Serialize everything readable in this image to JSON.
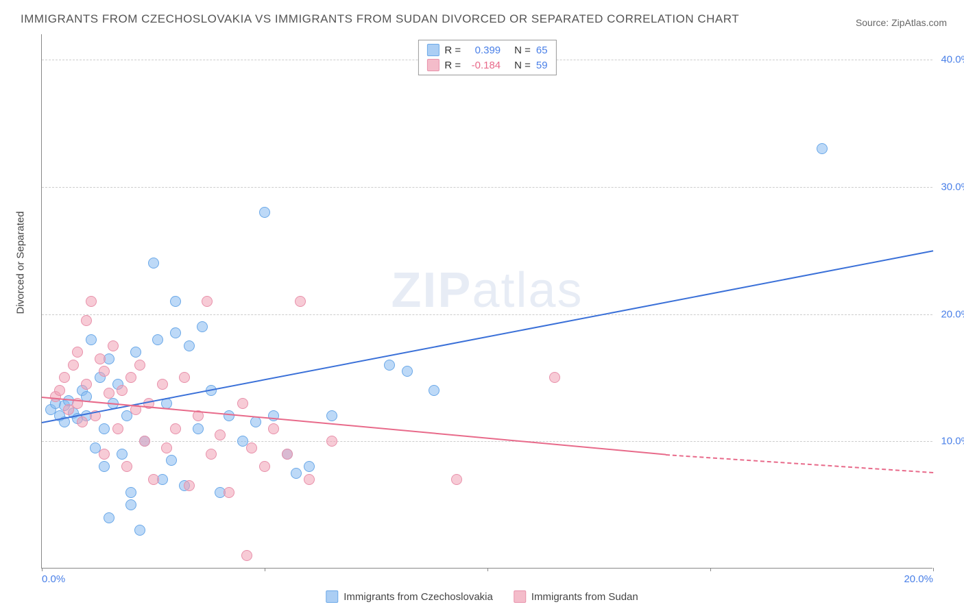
{
  "title": "IMMIGRANTS FROM CZECHOSLOVAKIA VS IMMIGRANTS FROM SUDAN DIVORCED OR SEPARATED CORRELATION CHART",
  "source": "Source: ZipAtlas.com",
  "watermark_a": "ZIP",
  "watermark_b": "atlas",
  "y_axis_label": "Divorced or Separated",
  "chart": {
    "type": "scatter",
    "xlim": [
      0,
      20
    ],
    "ylim": [
      0,
      42
    ],
    "x_ticks": [
      0,
      5,
      10,
      15,
      20
    ],
    "y_ticks": [
      10,
      20,
      30,
      40
    ],
    "x_tick_labels": [
      "0.0%",
      "",
      "",
      "",
      "20.0%"
    ],
    "y_tick_labels": [
      "10.0%",
      "20.0%",
      "30.0%",
      "40.0%"
    ],
    "grid_color": "#cccccc",
    "background_color": "#ffffff",
    "series": [
      {
        "name": "Immigrants from Czechoslovakia",
        "color": "#87b9f0",
        "border": "#6aa8e8",
        "line_color": "#3a70d8",
        "r": "0.399",
        "n": "65",
        "trend": {
          "x1": 0,
          "y1": 11.5,
          "x2": 20,
          "y2": 25.0
        },
        "points": [
          [
            0.2,
            12.5
          ],
          [
            0.3,
            13
          ],
          [
            0.4,
            12
          ],
          [
            0.5,
            12.8
          ],
          [
            0.5,
            11.5
          ],
          [
            0.6,
            13.2
          ],
          [
            0.7,
            12.2
          ],
          [
            0.8,
            11.8
          ],
          [
            0.9,
            14
          ],
          [
            1.0,
            13.5
          ],
          [
            1.0,
            12
          ],
          [
            1.1,
            18
          ],
          [
            1.2,
            9.5
          ],
          [
            1.3,
            15
          ],
          [
            1.4,
            11
          ],
          [
            1.4,
            8
          ],
          [
            1.5,
            16.5
          ],
          [
            1.5,
            4
          ],
          [
            1.6,
            13
          ],
          [
            1.7,
            14.5
          ],
          [
            1.8,
            9
          ],
          [
            1.9,
            12
          ],
          [
            2.0,
            6
          ],
          [
            2.0,
            5
          ],
          [
            2.1,
            17
          ],
          [
            2.2,
            3
          ],
          [
            2.3,
            10
          ],
          [
            2.5,
            24
          ],
          [
            2.6,
            18
          ],
          [
            2.7,
            7
          ],
          [
            2.8,
            13
          ],
          [
            2.9,
            8.5
          ],
          [
            3.0,
            18.5
          ],
          [
            3.0,
            21
          ],
          [
            3.2,
            6.5
          ],
          [
            3.3,
            17.5
          ],
          [
            3.5,
            11
          ],
          [
            3.6,
            19
          ],
          [
            3.8,
            14
          ],
          [
            4.0,
            6
          ],
          [
            4.2,
            12
          ],
          [
            4.5,
            10
          ],
          [
            4.8,
            11.5
          ],
          [
            5.0,
            28
          ],
          [
            5.2,
            12
          ],
          [
            5.5,
            9
          ],
          [
            5.7,
            7.5
          ],
          [
            6.0,
            8
          ],
          [
            6.5,
            12
          ],
          [
            7.8,
            16
          ],
          [
            8.2,
            15.5
          ],
          [
            8.8,
            14
          ],
          [
            17.5,
            33
          ]
        ]
      },
      {
        "name": "Immigrants from Sudan",
        "color": "#f0a0b4",
        "border": "#e890aa",
        "line_color": "#e86a8a",
        "r": "-0.184",
        "n": "59",
        "trend": {
          "x1": 0,
          "y1": 13.5,
          "x2": 14,
          "y2": 9.0,
          "dash_x2": 20,
          "dash_y2": 7.6
        },
        "points": [
          [
            0.3,
            13.5
          ],
          [
            0.4,
            14
          ],
          [
            0.5,
            15
          ],
          [
            0.6,
            12.5
          ],
          [
            0.7,
            16
          ],
          [
            0.8,
            13
          ],
          [
            0.8,
            17
          ],
          [
            0.9,
            11.5
          ],
          [
            1.0,
            19.5
          ],
          [
            1.0,
            14.5
          ],
          [
            1.1,
            21
          ],
          [
            1.2,
            12
          ],
          [
            1.3,
            16.5
          ],
          [
            1.4,
            15.5
          ],
          [
            1.4,
            9
          ],
          [
            1.5,
            13.8
          ],
          [
            1.6,
            17.5
          ],
          [
            1.7,
            11
          ],
          [
            1.8,
            14
          ],
          [
            1.9,
            8
          ],
          [
            2.0,
            15
          ],
          [
            2.1,
            12.5
          ],
          [
            2.2,
            16
          ],
          [
            2.3,
            10
          ],
          [
            2.4,
            13
          ],
          [
            2.5,
            7
          ],
          [
            2.7,
            14.5
          ],
          [
            2.8,
            9.5
          ],
          [
            3.0,
            11
          ],
          [
            3.2,
            15
          ],
          [
            3.3,
            6.5
          ],
          [
            3.5,
            12
          ],
          [
            3.7,
            21
          ],
          [
            3.8,
            9
          ],
          [
            4.0,
            10.5
          ],
          [
            4.2,
            6
          ],
          [
            4.5,
            13
          ],
          [
            4.6,
            1
          ],
          [
            4.7,
            9.5
          ],
          [
            5.0,
            8
          ],
          [
            5.2,
            11
          ],
          [
            5.5,
            9
          ],
          [
            5.8,
            21
          ],
          [
            6.0,
            7
          ],
          [
            6.5,
            10
          ],
          [
            9.3,
            7
          ],
          [
            11.5,
            15
          ]
        ]
      }
    ]
  },
  "legend_top": {
    "r_label": "R =",
    "n_label": "N ="
  },
  "legend_bottom": [
    {
      "label": "Immigrants from Czechoslovakia",
      "class": "swatch-blue"
    },
    {
      "label": "Immigrants from Sudan",
      "class": "swatch-pink"
    }
  ]
}
